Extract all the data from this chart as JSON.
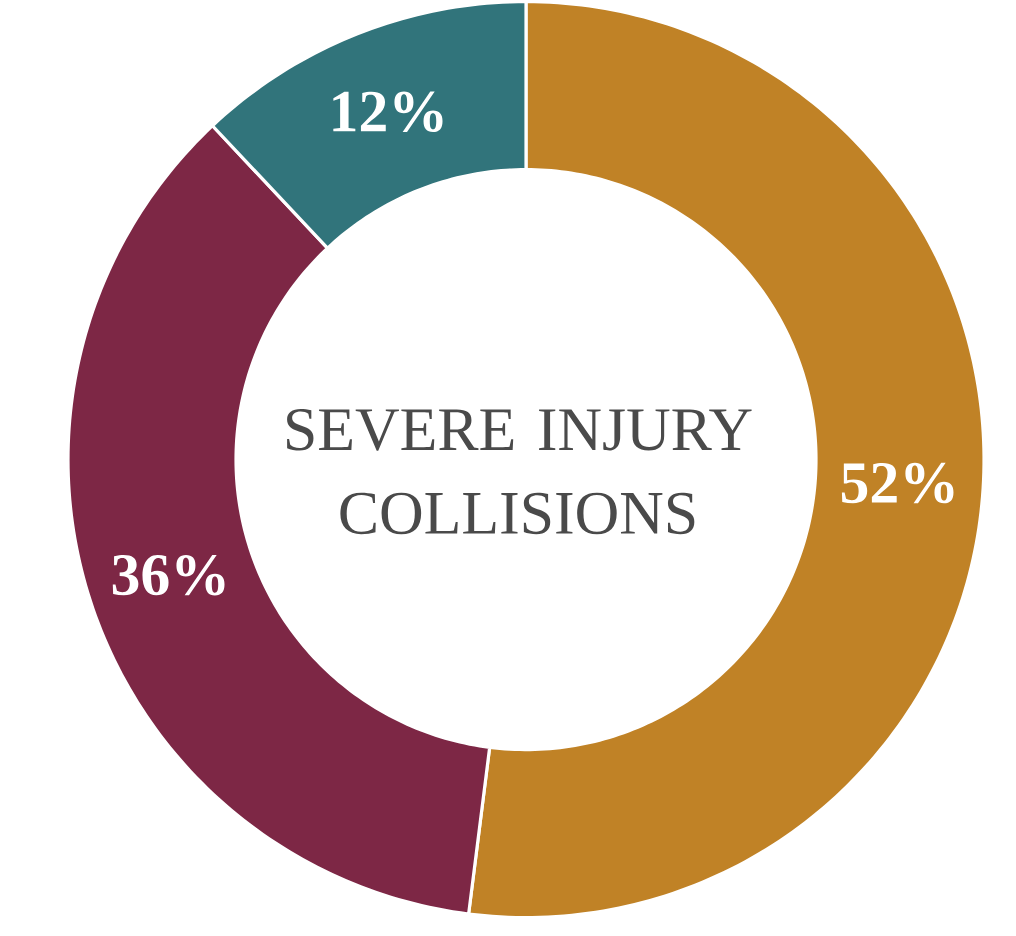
{
  "chart_data": {
    "type": "donut",
    "title": "SEVERE INJURY COLLISIONS",
    "categories": [
      null,
      null,
      null
    ],
    "values": [
      52,
      36,
      12
    ],
    "colors": [
      "#c08226",
      "#7d2745",
      "#31747b"
    ],
    "value_labels": [
      "52%",
      "36%",
      "12%"
    ]
  }
}
